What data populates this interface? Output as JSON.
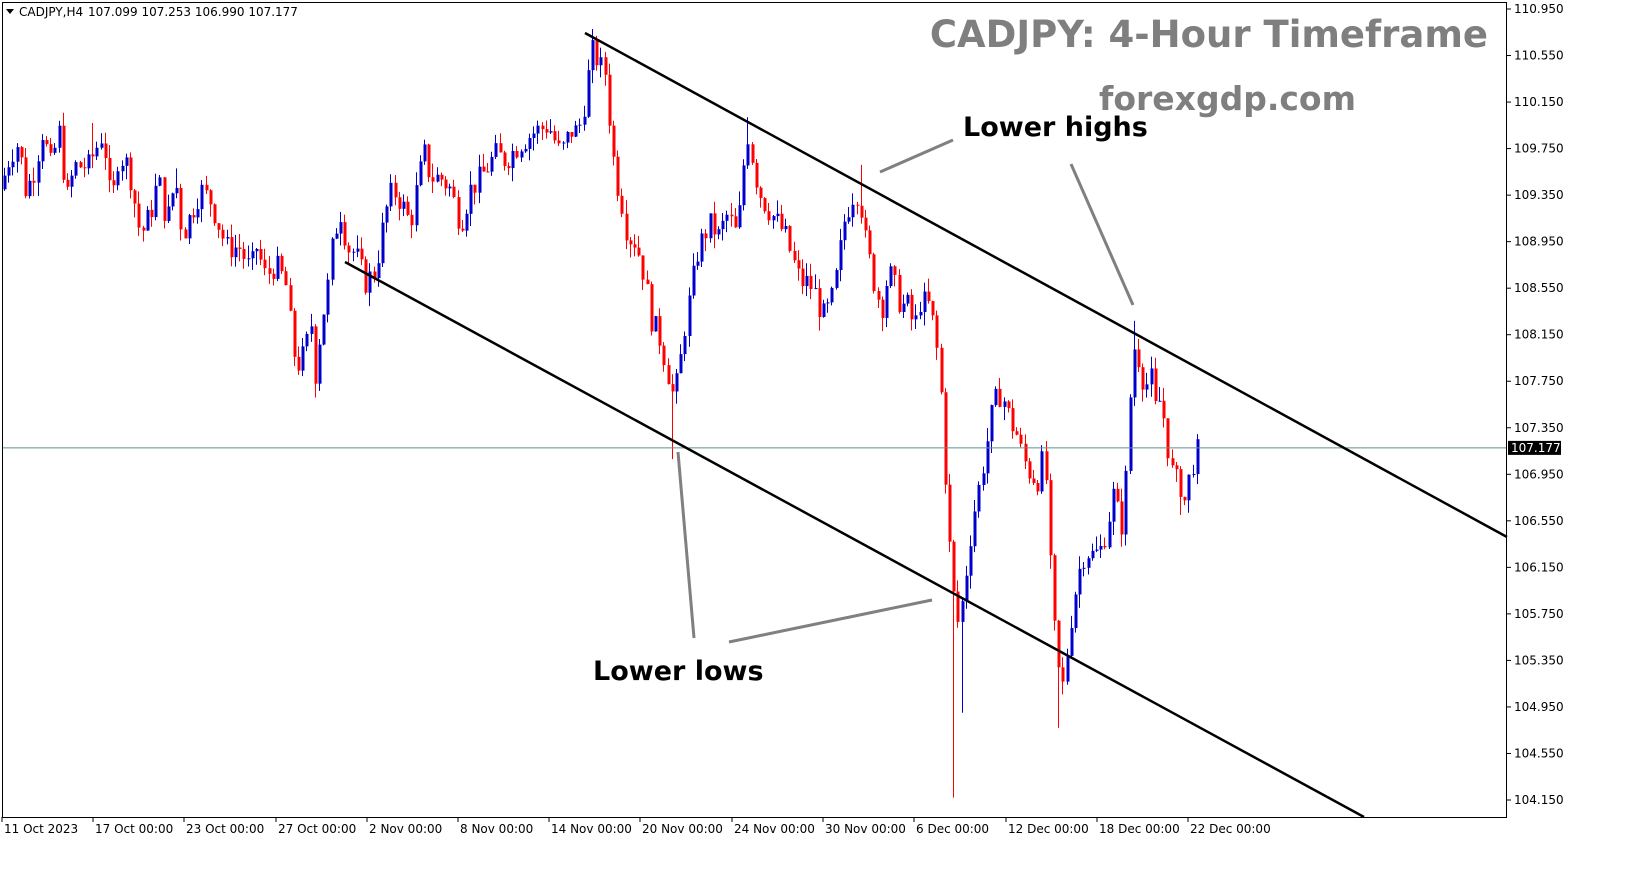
{
  "header": {
    "symbol": "CADJPY,H4",
    "ohlc": "107.099 107.253 106.990 107.177"
  },
  "title": "CADJPY: 4-Hour Timeframe",
  "watermark": "forexgdp.com",
  "annotations": {
    "lower_highs": "Lower highs",
    "lower_lows": "Lower lows"
  },
  "colors": {
    "bull": "#0000cc",
    "bear": "#ff0000",
    "channel": "#000000",
    "pointer": "#808080",
    "price_line": "#5f8f8f",
    "title": "#7f7f7f"
  },
  "chart_data": {
    "type": "candlestick",
    "title": "CADJPY: 4-Hour Timeframe",
    "symbol": "CADJPY",
    "timeframe": "H4",
    "last_price": 107.177,
    "last_price_label": "107.177",
    "ylim": [
      104.1,
      110.95
    ],
    "y_ticks": [
      "110.950",
      "110.550",
      "110.150",
      "109.750",
      "109.350",
      "108.950",
      "108.550",
      "108.150",
      "107.750",
      "107.350",
      "106.950",
      "106.550",
      "106.150",
      "105.750",
      "105.350",
      "104.950",
      "104.550",
      "104.150"
    ],
    "x_ticks": [
      "11 Oct 2023",
      "17 Oct 00:00",
      "23 Oct 00:00",
      "27 Oct 00:00",
      "2 Nov 00:00",
      "8 Nov 00:00",
      "14 Nov 00:00",
      "20 Nov 00:00",
      "24 Nov 00:00",
      "30 Nov 00:00",
      "6 Dec 00:00",
      "12 Dec 00:00",
      "18 Dec 00:00",
      "22 Dec 00:00"
    ],
    "price_path": [
      [
        0,
        109.4
      ],
      [
        10,
        109.7
      ],
      [
        18,
        109.8
      ],
      [
        25,
        109.4
      ],
      [
        32,
        109.5
      ],
      [
        42,
        109.9
      ],
      [
        50,
        109.6
      ],
      [
        59,
        109.9
      ],
      [
        66,
        109.3
      ],
      [
        74,
        109.6
      ],
      [
        88,
        109.6
      ],
      [
        103,
        109.9
      ],
      [
        108,
        109.4
      ],
      [
        112,
        109.3
      ],
      [
        118,
        109.7
      ],
      [
        128,
        109.6
      ],
      [
        140,
        109.0
      ],
      [
        150,
        109.2
      ],
      [
        158,
        109.5
      ],
      [
        166,
        109.1
      ],
      [
        175,
        109.5
      ],
      [
        182,
        109.0
      ],
      [
        200,
        109.4
      ],
      [
        210,
        109.3
      ],
      [
        226,
        108.9
      ],
      [
        239,
        108.9
      ],
      [
        250,
        108.7
      ],
      [
        256,
        108.9
      ],
      [
        265,
        108.65
      ],
      [
        275,
        108.75
      ],
      [
        285,
        108.6
      ],
      [
        293,
        108.0
      ],
      [
        298,
        107.9
      ],
      [
        305,
        108.0
      ],
      [
        310,
        108.3
      ],
      [
        315,
        107.8
      ],
      [
        320,
        108.2
      ],
      [
        328,
        108.6
      ],
      [
        333,
        109.0
      ],
      [
        340,
        109.2
      ],
      [
        347,
        108.9
      ],
      [
        355,
        108.85
      ],
      [
        365,
        108.6
      ],
      [
        375,
        108.7
      ],
      [
        385,
        109.2
      ],
      [
        392,
        109.4
      ],
      [
        400,
        109.3
      ],
      [
        410,
        109.1
      ],
      [
        418,
        109.5
      ],
      [
        424,
        109.7
      ],
      [
        430,
        109.5
      ],
      [
        440,
        109.5
      ],
      [
        450,
        109.4
      ],
      [
        460,
        109.1
      ],
      [
        470,
        109.4
      ],
      [
        480,
        109.5
      ],
      [
        495,
        109.7
      ],
      [
        505,
        109.65
      ],
      [
        520,
        109.8
      ],
      [
        535,
        109.9
      ],
      [
        548,
        109.95
      ],
      [
        560,
        109.7
      ],
      [
        570,
        109.9
      ],
      [
        578,
        109.9
      ],
      [
        583,
        110.1
      ],
      [
        587,
        110.3
      ],
      [
        590,
        110.6
      ],
      [
        595,
        110.55
      ],
      [
        600,
        110.45
      ],
      [
        605,
        110.4
      ],
      [
        610,
        109.9
      ],
      [
        615,
        109.5
      ],
      [
        620,
        109.35
      ],
      [
        627,
        109.0
      ],
      [
        635,
        108.95
      ],
      [
        640,
        108.8
      ],
      [
        645,
        108.6
      ],
      [
        650,
        108.3
      ],
      [
        660,
        108.1
      ],
      [
        668,
        107.8
      ],
      [
        673,
        107.6
      ],
      [
        678,
        107.8
      ],
      [
        684,
        108.2
      ],
      [
        690,
        108.5
      ],
      [
        697,
        108.85
      ],
      [
        703,
        109.0
      ],
      [
        710,
        109.1
      ],
      [
        718,
        109.0
      ],
      [
        728,
        109.2
      ],
      [
        734,
        109.0
      ],
      [
        739,
        109.2
      ],
      [
        743,
        109.6
      ],
      [
        748,
        109.9
      ],
      [
        753,
        109.6
      ],
      [
        758,
        109.4
      ],
      [
        763,
        109.3
      ],
      [
        770,
        109.2
      ],
      [
        778,
        109.1
      ],
      [
        785,
        109.0
      ],
      [
        792,
        108.8
      ],
      [
        800,
        108.6
      ],
      [
        808,
        108.6
      ],
      [
        815,
        108.5
      ],
      [
        822,
        108.3
      ],
      [
        830,
        108.4
      ],
      [
        837,
        108.7
      ],
      [
        843,
        109.1
      ],
      [
        850,
        109.3
      ],
      [
        855,
        109.4
      ],
      [
        860,
        109.3
      ],
      [
        864,
        109.0
      ],
      [
        870,
        108.75
      ],
      [
        876,
        108.5
      ],
      [
        882,
        108.4
      ],
      [
        888,
        108.7
      ],
      [
        893,
        108.6
      ],
      [
        900,
        108.4
      ],
      [
        907,
        108.4
      ],
      [
        914,
        108.2
      ],
      [
        920,
        108.45
      ],
      [
        928,
        108.4
      ],
      [
        934,
        108.2
      ],
      [
        938,
        107.9
      ],
      [
        942,
        107.5
      ],
      [
        945,
        106.9
      ],
      [
        948,
        106.4
      ],
      [
        952,
        106.1
      ],
      [
        955,
        105.6
      ],
      [
        958,
        105.7
      ],
      [
        963,
        105.9
      ],
      [
        968,
        106.3
      ],
      [
        973,
        106.6
      ],
      [
        980,
        106.9
      ],
      [
        986,
        107.2
      ],
      [
        992,
        107.5
      ],
      [
        998,
        107.65
      ],
      [
        1003,
        107.6
      ],
      [
        1010,
        107.4
      ],
      [
        1016,
        107.3
      ],
      [
        1022,
        107.1
      ],
      [
        1030,
        106.95
      ],
      [
        1037,
        106.9
      ],
      [
        1043,
        107.1
      ],
      [
        1047,
        106.8
      ],
      [
        1050,
        106.1
      ],
      [
        1053,
        105.7
      ],
      [
        1057,
        105.3
      ],
      [
        1062,
        105.1
      ],
      [
        1067,
        105.45
      ],
      [
        1072,
        105.8
      ],
      [
        1078,
        106.1
      ],
      [
        1085,
        106.3
      ],
      [
        1093,
        106.25
      ],
      [
        1100,
        106.3
      ],
      [
        1107,
        106.5
      ],
      [
        1112,
        106.8
      ],
      [
        1118,
        106.6
      ],
      [
        1122,
        106.5
      ],
      [
        1127,
        107.1
      ],
      [
        1131,
        107.9
      ],
      [
        1135,
        108.1
      ],
      [
        1140,
        107.85
      ],
      [
        1145,
        107.7
      ],
      [
        1150,
        107.8
      ],
      [
        1155,
        107.5
      ],
      [
        1160,
        107.6
      ],
      [
        1165,
        107.35
      ],
      [
        1170,
        107.0
      ],
      [
        1175,
        106.9
      ],
      [
        1180,
        106.85
      ],
      [
        1185,
        106.7
      ],
      [
        1190,
        107.0
      ],
      [
        1195,
        107.1
      ],
      [
        1198,
        107.177
      ]
    ],
    "swing_extremes": [
      {
        "date": "16 Oct",
        "high": 109.97
      },
      {
        "date": "25 Oct",
        "high": 109.58
      },
      {
        "date": "30 Oct",
        "low": 107.61
      },
      {
        "date": "14 Nov",
        "high": 110.7
      },
      {
        "date": "21 Nov",
        "low": 107.08
      },
      {
        "date": "24 Nov",
        "high": 110.02
      },
      {
        "date": "1 Dec",
        "high": 109.61
      },
      {
        "date": "7 Dec",
        "low": 104.17
      },
      {
        "date": "13 Dec",
        "low": 104.77
      },
      {
        "date": "18 Dec",
        "high": 108.27
      },
      {
        "date": "21 Dec",
        "low": 106.6
      }
    ],
    "channel": {
      "upper": [
        [
          "14 Nov",
          110.8
        ],
        [
          "27 Dec",
          106.45
        ]
      ],
      "lower": [
        [
          "1 Nov",
          108.8
        ],
        [
          "27 Dec",
          104.1
        ]
      ]
    },
    "grid": false,
    "legend": "none"
  }
}
